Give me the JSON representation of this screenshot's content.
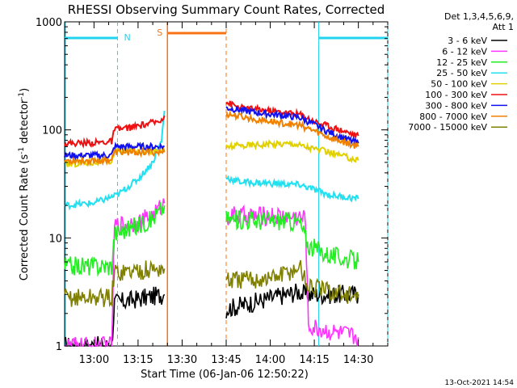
{
  "chart_data": {
    "type": "line",
    "title": "RHESSI Observing Summary Count Rates, Corrected",
    "xlabel": "Start Time (06-Jan-06 12:50:22)",
    "ylabel": "Corrected Count Rate (s⁻¹ detector⁻¹)",
    "ylabel_parts": {
      "main": "Corrected Count Rate (s",
      "exp1": "-1",
      "mid": " detector",
      "exp2": "-1",
      "end": ")"
    },
    "yscale": "log",
    "ylim": [
      1,
      1000
    ],
    "xlim_minutes": [
      -10,
      100
    ],
    "x_ticks": [
      {
        "label": "13:00",
        "min": 0
      },
      {
        "label": "13:15",
        "min": 15
      },
      {
        "label": "13:30",
        "min": 30
      },
      {
        "label": "13:45",
        "min": 45
      },
      {
        "label": "14:00",
        "min": 60
      },
      {
        "label": "14:15",
        "min": 75
      },
      {
        "label": "14:30",
        "min": 90
      }
    ],
    "y_ticks": [
      {
        "label": "1",
        "v": 1
      },
      {
        "label": "10",
        "v": 10
      },
      {
        "label": "100",
        "v": 100
      },
      {
        "label": "1000",
        "v": 1000
      }
    ],
    "legend_header": [
      "Det 1,3,4,5,6,9,",
      "Att 1"
    ],
    "grid": false,
    "legend_position": "right",
    "markers": {
      "night": {
        "label": "N",
        "color": "#22d3ee",
        "intervals": [
          [
            -10,
            8
          ],
          [
            76.5,
            100
          ]
        ]
      },
      "saa": {
        "label": "S",
        "color": "#f97316",
        "intervals": [
          [
            25,
            45
          ]
        ]
      }
    },
    "series": [
      {
        "name": "3 - 6 keV",
        "color": "#000000",
        "segments": [
          {
            "x": [
              -10,
              6,
              7,
              24
            ],
            "y": [
              1.0,
              1.0,
              2.5,
              3.0
            ]
          },
          {
            "x": [
              45,
              70,
              71,
              90
            ],
            "y": [
              2.2,
              3.2,
              3.0,
              3.0
            ]
          }
        ]
      },
      {
        "name": "6 - 12 keV",
        "color": "#ff33ff",
        "segments": [
          {
            "x": [
              -10,
              6,
              7,
              15,
              20,
              24
            ],
            "y": [
              1.0,
              1.0,
              13,
              14,
              16,
              21
            ]
          },
          {
            "x": [
              45,
              60,
              70,
              72,
              73,
              90
            ],
            "y": [
              16,
              16,
              15.5,
              15,
              1.5,
              1.2
            ]
          }
        ]
      },
      {
        "name": "12 - 25 keV",
        "color": "#22ee22",
        "segments": [
          {
            "x": [
              -10,
              6,
              7,
              15,
              20,
              24
            ],
            "y": [
              5.5,
              5.5,
              11,
              13,
              15,
              20
            ]
          },
          {
            "x": [
              45,
              55,
              65,
              70,
              73,
              80,
              90
            ],
            "y": [
              15,
              14.5,
              14.5,
              14,
              8.5,
              7,
              6
            ]
          }
        ]
      },
      {
        "name": "25 - 50 keV",
        "color": "#22e0f0",
        "segments": [
          {
            "x": [
              -10,
              0,
              8,
              15,
              20,
              23,
              24
            ],
            "y": [
              20,
              21,
              25,
              35,
              50,
              80,
              150
            ]
          },
          {
            "x": [
              45,
              50,
              60,
              70,
              75,
              80,
              90
            ],
            "y": [
              36,
              33,
              32,
              31,
              28,
              25,
              23
            ]
          }
        ]
      },
      {
        "name": "50 - 100 keV",
        "color": "#e0d000",
        "segments": [
          {
            "x": [
              -10,
              0,
              6,
              7,
              24
            ],
            "y": [
              48,
              50,
              51,
              64,
              64
            ]
          },
          {
            "x": [
              45,
              55,
              68,
              72,
              80,
              90
            ],
            "y": [
              70,
              73,
              75,
              70,
              62,
              52
            ]
          }
        ]
      },
      {
        "name": "100 - 300 keV",
        "color": "#ee1111",
        "segments": [
          {
            "x": [
              -10,
              0,
              6,
              7,
              15,
              22,
              24
            ],
            "y": [
              75,
              76,
              78,
              100,
              108,
              120,
              135
            ]
          },
          {
            "x": [
              45,
              50,
              60,
              70,
              75,
              80,
              85,
              90
            ],
            "y": [
              180,
              160,
              150,
              140,
              120,
              108,
              98,
              88
            ]
          }
        ]
      },
      {
        "name": "300 - 800 keV",
        "color": "#1111ee",
        "segments": [
          {
            "x": [
              -10,
              0,
              6,
              7,
              24
            ],
            "y": [
              58,
              58,
              58,
              70,
              70
            ]
          },
          {
            "x": [
              45,
              55,
              65,
              70,
              75,
              80,
              90
            ],
            "y": [
              160,
              145,
              135,
              130,
              112,
              95,
              75
            ]
          }
        ]
      },
      {
        "name": "800 - 7000 keV",
        "color": "#f08000",
        "segments": [
          {
            "x": [
              -10,
              0,
              6,
              7,
              24
            ],
            "y": [
              52,
              52,
              53,
              62,
              62
            ]
          },
          {
            "x": [
              45,
              55,
              65,
              70,
              75,
              80,
              90
            ],
            "y": [
              140,
              125,
              115,
              110,
              98,
              85,
              70
            ]
          }
        ]
      },
      {
        "name": "7000 - 15000 keV",
        "color": "#808000",
        "segments": [
          {
            "x": [
              -10,
              6,
              7,
              24
            ],
            "y": [
              2.8,
              2.8,
              4.8,
              5.2
            ]
          },
          {
            "x": [
              45,
              60,
              68,
              70,
              73,
              90
            ],
            "y": [
              4.0,
              4.2,
              5.0,
              5.5,
              3.5,
              2.8
            ]
          }
        ]
      }
    ]
  },
  "footer": {
    "timestamp": "13-Oct-2021 14:54"
  }
}
